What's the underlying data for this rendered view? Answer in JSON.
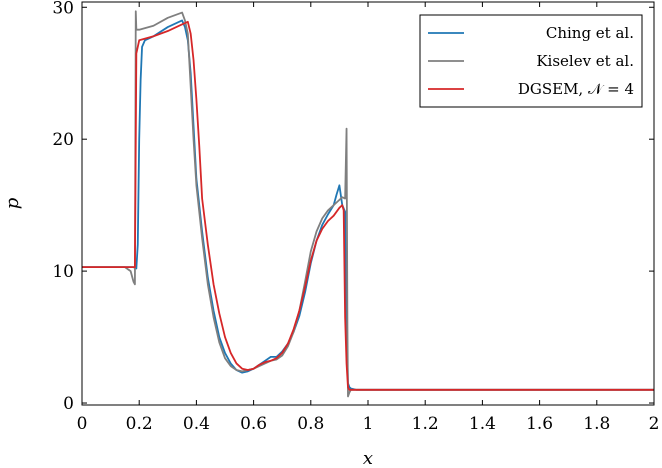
{
  "chart_data": {
    "type": "line",
    "title": "",
    "xlabel": "x",
    "ylabel": "p",
    "xlim": [
      0,
      2
    ],
    "ylim": [
      0,
      30
    ],
    "xticks": [
      "0",
      "0.2",
      "0.4",
      "0.6",
      "0.8",
      "1",
      "1.2",
      "1.4",
      "1.6",
      "1.8",
      "2"
    ],
    "yticks": [
      "0",
      "10",
      "20",
      "30"
    ],
    "grid": false,
    "legend_position": "top-right",
    "series": [
      {
        "name": "Ching et al.",
        "color": "#1f77b4",
        "x": [
          0,
          0.18,
          0.19,
          0.195,
          0.2,
          0.205,
          0.21,
          0.22,
          0.25,
          0.3,
          0.35,
          0.36,
          0.37,
          0.38,
          0.39,
          0.4,
          0.42,
          0.44,
          0.46,
          0.48,
          0.5,
          0.52,
          0.54,
          0.56,
          0.58,
          0.6,
          0.62,
          0.64,
          0.66,
          0.68,
          0.7,
          0.72,
          0.74,
          0.76,
          0.78,
          0.8,
          0.82,
          0.84,
          0.86,
          0.88,
          0.89,
          0.9,
          0.91,
          0.92,
          0.925,
          0.93,
          0.935,
          0.94,
          0.96,
          1.0,
          1.2,
          1.4,
          1.6,
          1.8,
          2.0
        ],
        "y": [
          10.3,
          10.3,
          10.2,
          12.0,
          20.0,
          24.5,
          27.0,
          27.5,
          27.8,
          28.5,
          29.0,
          28.5,
          27.5,
          25.0,
          21.0,
          17.0,
          13.0,
          9.5,
          7.0,
          5.0,
          3.8,
          3.0,
          2.5,
          2.3,
          2.4,
          2.6,
          2.9,
          3.2,
          3.5,
          3.5,
          3.9,
          4.5,
          5.4,
          6.6,
          8.4,
          10.6,
          12.3,
          13.5,
          14.3,
          15.0,
          15.8,
          16.5,
          15.0,
          14.5,
          6.0,
          1.5,
          1.2,
          1.1,
          1.0,
          1.0,
          1.0,
          1.0,
          1.0,
          1.0,
          1.0
        ]
      },
      {
        "name": "Kiselev et al.",
        "color": "#7f7f7f",
        "x": [
          0,
          0.15,
          0.17,
          0.18,
          0.185,
          0.188,
          0.19,
          0.2,
          0.25,
          0.3,
          0.35,
          0.36,
          0.37,
          0.38,
          0.39,
          0.4,
          0.42,
          0.44,
          0.46,
          0.48,
          0.5,
          0.52,
          0.54,
          0.56,
          0.58,
          0.6,
          0.62,
          0.64,
          0.66,
          0.68,
          0.7,
          0.72,
          0.74,
          0.76,
          0.78,
          0.8,
          0.82,
          0.84,
          0.86,
          0.88,
          0.9,
          0.91,
          0.92,
          0.925,
          0.928,
          0.93,
          0.935,
          0.94,
          0.96,
          1.0,
          1.2,
          1.4,
          1.6,
          1.8,
          2.0
        ],
        "y": [
          10.3,
          10.3,
          10.0,
          9.2,
          9.0,
          29.7,
          28.3,
          28.3,
          28.6,
          29.2,
          29.6,
          29.0,
          28.0,
          24.0,
          20.0,
          16.5,
          12.5,
          9.0,
          6.5,
          4.6,
          3.4,
          2.8,
          2.5,
          2.4,
          2.5,
          2.6,
          2.8,
          3.0,
          3.2,
          3.3,
          3.6,
          4.3,
          5.4,
          7.0,
          9.2,
          11.5,
          13.0,
          14.0,
          14.6,
          15.0,
          15.4,
          15.6,
          15.5,
          20.8,
          6.0,
          0.5,
          0.8,
          1.0,
          1.0,
          1.0,
          1.0,
          1.0,
          1.0,
          1.0,
          1.0
        ]
      },
      {
        "name": "DGSEM, 𝒩 = 4",
        "color": "#d62728",
        "x": [
          0,
          0.18,
          0.185,
          0.19,
          0.2,
          0.25,
          0.3,
          0.34,
          0.36,
          0.37,
          0.38,
          0.39,
          0.4,
          0.41,
          0.42,
          0.44,
          0.46,
          0.48,
          0.5,
          0.52,
          0.54,
          0.56,
          0.58,
          0.6,
          0.62,
          0.64,
          0.66,
          0.68,
          0.7,
          0.72,
          0.74,
          0.76,
          0.78,
          0.8,
          0.82,
          0.84,
          0.86,
          0.88,
          0.9,
          0.91,
          0.915,
          0.92,
          0.925,
          0.93,
          0.935,
          0.94,
          0.96,
          1.0,
          1.2,
          1.4,
          1.6,
          1.8,
          2.0
        ],
        "y": [
          10.3,
          10.3,
          10.3,
          26.5,
          27.5,
          27.8,
          28.2,
          28.6,
          28.8,
          28.9,
          28.0,
          26.0,
          23.0,
          19.5,
          15.5,
          12.0,
          9.0,
          6.8,
          5.0,
          3.8,
          3.0,
          2.6,
          2.5,
          2.6,
          2.9,
          3.1,
          3.2,
          3.4,
          3.8,
          4.5,
          5.6,
          7.0,
          8.8,
          10.8,
          12.3,
          13.2,
          13.8,
          14.2,
          14.8,
          15.0,
          14.6,
          6.5,
          3.0,
          1.2,
          1.0,
          1.0,
          1.0,
          1.0,
          1.0,
          1.0,
          1.0,
          1.0,
          1.0
        ]
      }
    ]
  }
}
